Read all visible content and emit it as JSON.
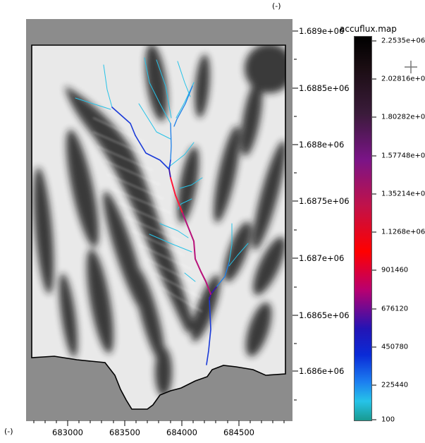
{
  "map": {
    "unit_label_top": "(-)",
    "unit_label_left": "(-)",
    "y_ticks": [
      "1.689e+06",
      "1.6885e+06",
      "1.688e+06",
      "1.6875e+06",
      "1.687e+06",
      "1.6865e+06",
      "1.686e+06"
    ],
    "x_ticks": [
      "683000",
      "683500",
      "684000",
      "684500"
    ],
    "frame_color": "#8c8c8c"
  },
  "legend": {
    "title": "accuflux.map",
    "labels": [
      "2.2535e+06",
      "2.02816e+0",
      "1.80282e+0",
      "1.57748e+0",
      "1.35214e+0",
      "1.1268e+06",
      "901460",
      "676120",
      "450780",
      "225440",
      "100"
    ],
    "cursor_icon": "crosshair-icon"
  },
  "colors": {
    "stream_low": "#26c3e8",
    "stream_mid": "#1a3ad8",
    "stream_high": "#ff1a3a"
  }
}
